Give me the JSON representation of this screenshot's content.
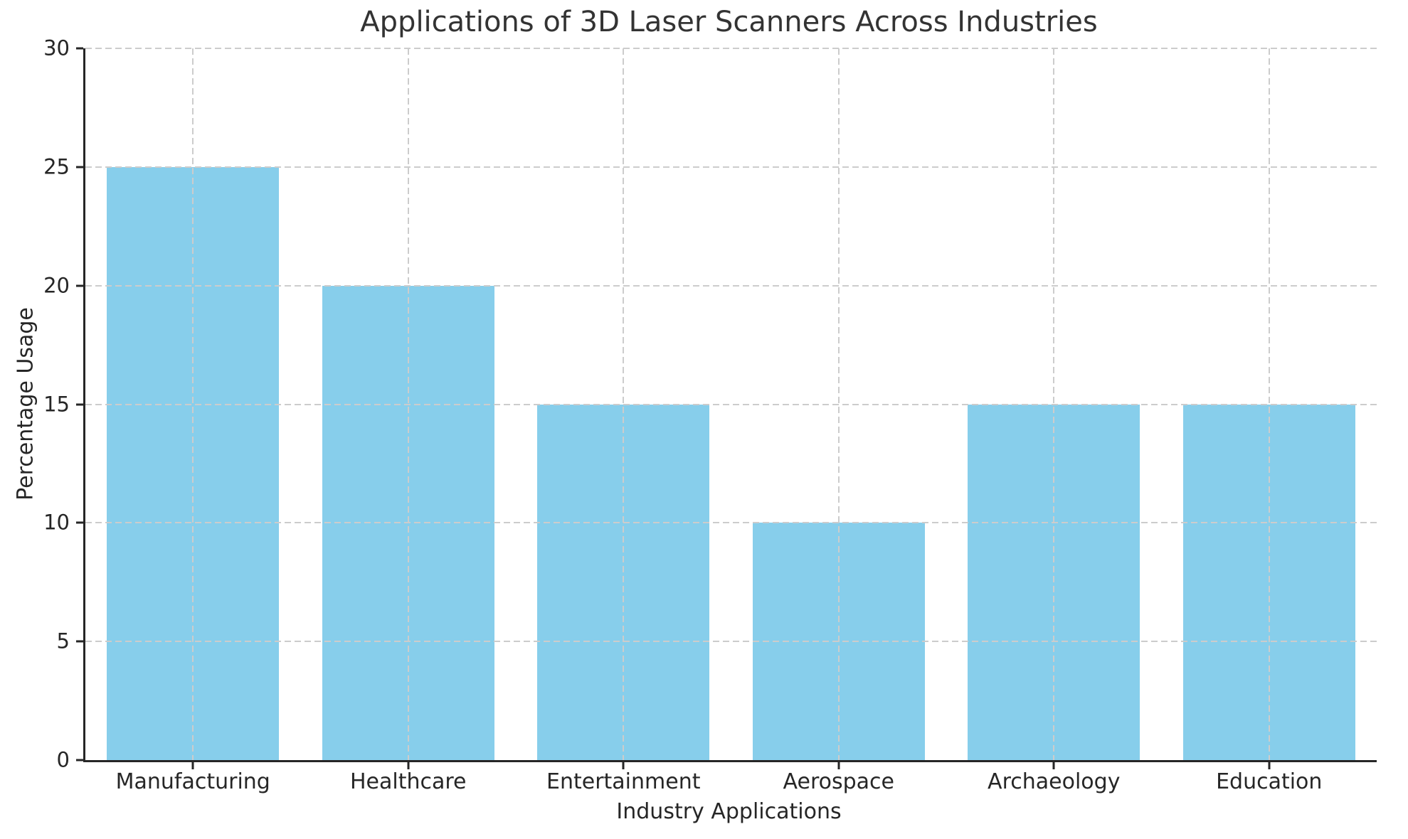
{
  "chart_data": {
    "type": "bar",
    "title": "Applications of 3D Laser Scanners Across Industries",
    "xlabel": "Industry Applications",
    "ylabel": "Percentage Usage",
    "categories": [
      "Manufacturing",
      "Healthcare",
      "Entertainment",
      "Aerospace",
      "Archaeology",
      "Education"
    ],
    "values": [
      25,
      20,
      15,
      10,
      15,
      15
    ],
    "ylim": [
      0,
      30
    ],
    "yticks": [
      0,
      5,
      10,
      15,
      20,
      25,
      30
    ],
    "bar_width_fraction": 0.8,
    "grid": "both-axes-dashed-drawn-over-bars",
    "legend_position": "none",
    "colors": {
      "bar_fill": "#87CEEB",
      "grid": "#cccccc",
      "spine": "#262626",
      "tick_text": "#262626",
      "title_text": "#333333",
      "background": "#ffffff"
    }
  }
}
